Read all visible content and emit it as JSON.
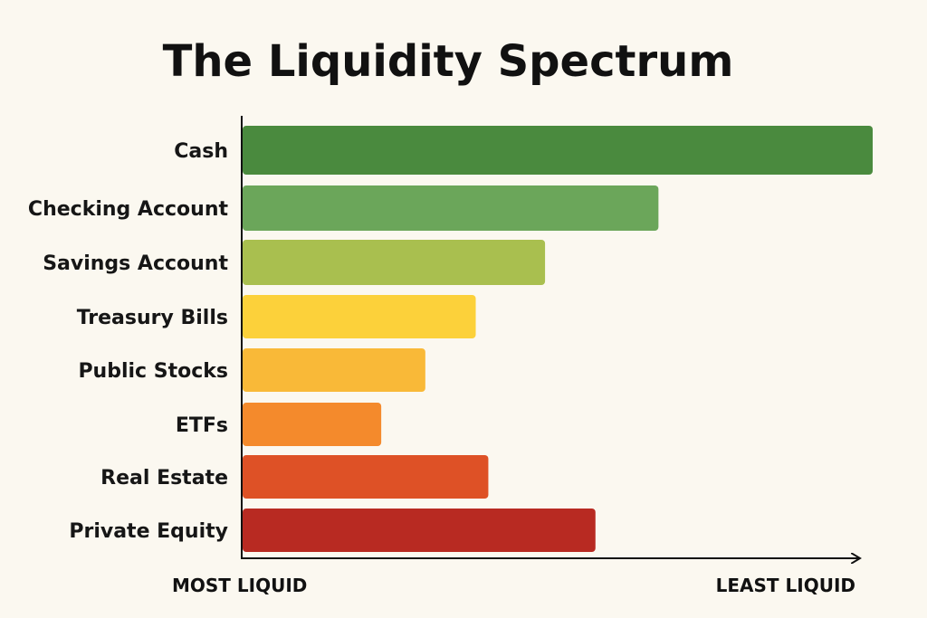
{
  "chart_data": {
    "type": "bar",
    "orientation": "horizontal",
    "title": "The Liquidity Spectrum",
    "categories": [
      "Cash",
      "Checking Account",
      "Savings Account",
      "Treasury Bills",
      "Public Stocks",
      "ETFs",
      "Real Estate",
      "Private Equity"
    ],
    "values": [
      100,
      66,
      48,
      37,
      29,
      22,
      39,
      56
    ],
    "colors": [
      "#4a8a3e",
      "#6ba65a",
      "#a9bf4f",
      "#fcd13a",
      "#f9b938",
      "#f48a2c",
      "#de5126",
      "#b82a22"
    ],
    "xlim": [
      0,
      100
    ],
    "x_start_label": "MOST LIQUID",
    "x_end_label": "LEAST LIQUID",
    "grid": false,
    "legend": "none"
  }
}
